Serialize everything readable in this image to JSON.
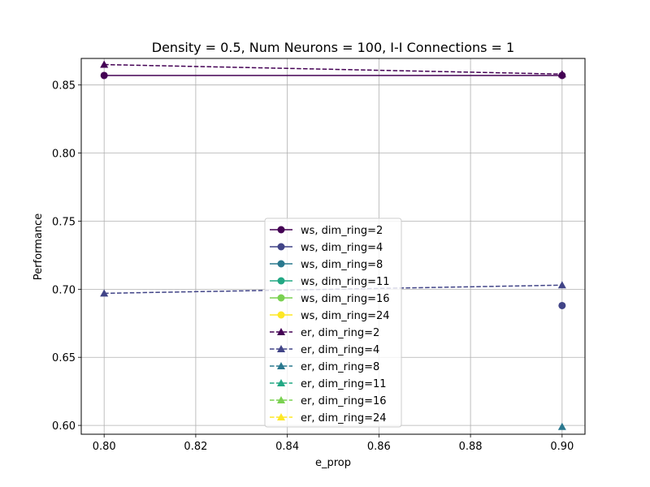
{
  "chart_data": {
    "type": "line",
    "title": "Density = 0.5, Num Neurons = 100, I-I Connections = 1",
    "xlabel": "e_prop",
    "ylabel": "Performance",
    "xlim": [
      0.795,
      0.905
    ],
    "ylim": [
      0.5935,
      0.8695
    ],
    "xticks": [
      0.8,
      0.82,
      0.84,
      0.86,
      0.88,
      0.9
    ],
    "xtick_labels": [
      "0.80",
      "0.82",
      "0.84",
      "0.86",
      "0.88",
      "0.90"
    ],
    "yticks": [
      0.6,
      0.65,
      0.7,
      0.75,
      0.8,
      0.85
    ],
    "ytick_labels": [
      "0.60",
      "0.65",
      "0.70",
      "0.75",
      "0.80",
      "0.85"
    ],
    "grid": true,
    "legend_position": "lower-center",
    "series": [
      {
        "name": "ws, dim_ring=2",
        "color": "#440154",
        "marker": "circle",
        "linestyle": "solid",
        "x": [
          0.8,
          0.9
        ],
        "y": [
          0.857,
          0.857
        ]
      },
      {
        "name": "ws, dim_ring=4",
        "color": "#414487",
        "marker": "circle",
        "linestyle": "solid",
        "x": [
          0.9
        ],
        "y": [
          0.688
        ]
      },
      {
        "name": "ws, dim_ring=8",
        "color": "#2a788e",
        "marker": "circle",
        "linestyle": "solid",
        "x": [],
        "y": []
      },
      {
        "name": "ws, dim_ring=11",
        "color": "#22a884",
        "marker": "circle",
        "linestyle": "solid",
        "x": [],
        "y": []
      },
      {
        "name": "ws, dim_ring=16",
        "color": "#7ad151",
        "marker": "circle",
        "linestyle": "solid",
        "x": [],
        "y": []
      },
      {
        "name": "ws, dim_ring=24",
        "color": "#fde725",
        "marker": "circle",
        "linestyle": "solid",
        "x": [],
        "y": []
      },
      {
        "name": "er, dim_ring=2",
        "color": "#440154",
        "marker": "triangle",
        "linestyle": "dashed",
        "x": [
          0.8,
          0.9
        ],
        "y": [
          0.865,
          0.858
        ]
      },
      {
        "name": "er, dim_ring=4",
        "color": "#414487",
        "marker": "triangle",
        "linestyle": "dashed",
        "x": [
          0.8,
          0.9
        ],
        "y": [
          0.697,
          0.703
        ]
      },
      {
        "name": "er, dim_ring=8",
        "color": "#2a788e",
        "marker": "triangle",
        "linestyle": "dashed",
        "x": [
          0.9
        ],
        "y": [
          0.599
        ]
      },
      {
        "name": "er, dim_ring=11",
        "color": "#22a884",
        "marker": "triangle",
        "linestyle": "dashed",
        "x": [],
        "y": []
      },
      {
        "name": "er, dim_ring=16",
        "color": "#7ad151",
        "marker": "triangle",
        "linestyle": "dashed",
        "x": [],
        "y": []
      },
      {
        "name": "er, dim_ring=24",
        "color": "#fde725",
        "marker": "triangle",
        "linestyle": "dashed",
        "x": [],
        "y": []
      }
    ]
  }
}
